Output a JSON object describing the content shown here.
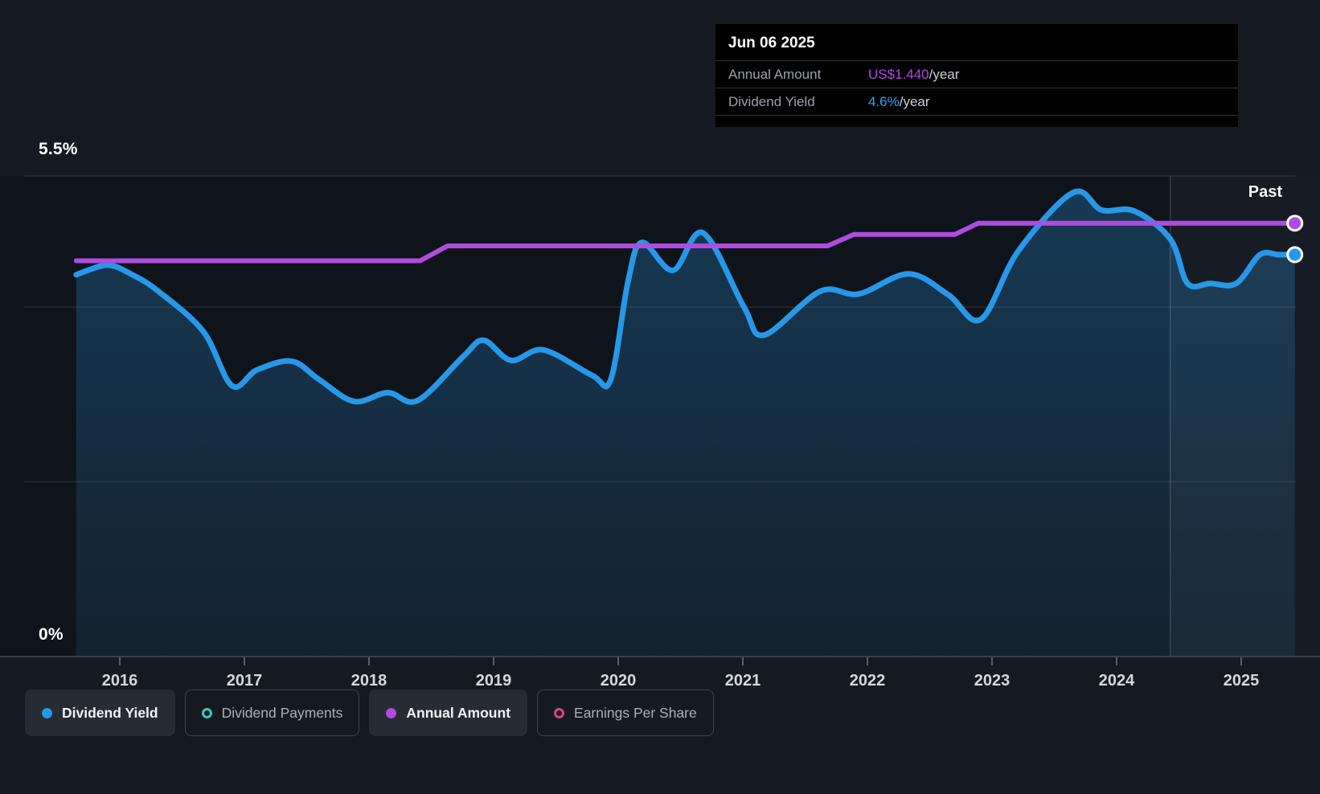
{
  "tooltip": {
    "date": "Jun 06 2025",
    "rows": [
      {
        "label": "Annual Amount",
        "value": "US$1.440",
        "suffix": "/year",
        "value_color": "#ae4ce0"
      },
      {
        "label": "Dividend Yield",
        "value": "4.6%",
        "suffix": "/year",
        "value_color": "#2ea4f2"
      }
    ]
  },
  "axis": {
    "y_top_label": "5.5%",
    "y_bottom_label": "0%",
    "past_label": "Past"
  },
  "legend": [
    {
      "label": "Dividend Yield",
      "color": "#2798e8",
      "marker": "dot",
      "active": true
    },
    {
      "label": "Dividend Payments",
      "color": "#3ec6c0",
      "marker": "ring",
      "active": false
    },
    {
      "label": "Annual Amount",
      "color": "#ae4ce0",
      "marker": "dot",
      "active": true
    },
    {
      "label": "Earnings Per Share",
      "color": "#d84a82",
      "marker": "ring",
      "active": false
    }
  ],
  "chart_data": {
    "type": "area",
    "x_axis": {
      "min": 2015.65,
      "max": 2025.43,
      "ticks": [
        2016,
        2017,
        2018,
        2019,
        2020,
        2021,
        2022,
        2023,
        2024,
        2025
      ]
    },
    "y_axis": {
      "min": 0,
      "max": 5.5,
      "unit": "%",
      "gridline_pcts": [
        5.5,
        4,
        2
      ],
      "top_label": "5.5%",
      "bottom_label": "0%"
    },
    "past_region_start": 2024.43,
    "current": {
      "date": "Jun 06 2025",
      "dividend_yield_pct": 4.6,
      "annual_amount": "US$1.440/year"
    },
    "series": [
      {
        "name": "Dividend Yield",
        "unit": "%",
        "color": "#2798e8",
        "style": "smooth-area",
        "points": [
          [
            2015.65,
            4.37
          ],
          [
            2015.9,
            4.48
          ],
          [
            2016.1,
            4.37
          ],
          [
            2016.31,
            4.18
          ],
          [
            2016.67,
            3.72
          ],
          [
            2016.9,
            3.1
          ],
          [
            2017.1,
            3.28
          ],
          [
            2017.38,
            3.38
          ],
          [
            2017.6,
            3.17
          ],
          [
            2017.88,
            2.92
          ],
          [
            2018.15,
            3.02
          ],
          [
            2018.39,
            2.93
          ],
          [
            2018.76,
            3.44
          ],
          [
            2018.92,
            3.62
          ],
          [
            2019.14,
            3.39
          ],
          [
            2019.4,
            3.51
          ],
          [
            2019.79,
            3.22
          ],
          [
            2019.94,
            3.17
          ],
          [
            2020.08,
            4.3
          ],
          [
            2020.19,
            4.74
          ],
          [
            2020.44,
            4.42
          ],
          [
            2020.68,
            4.85
          ],
          [
            2021.01,
            4.0
          ],
          [
            2021.17,
            3.68
          ],
          [
            2021.62,
            4.18
          ],
          [
            2021.93,
            4.15
          ],
          [
            2022.33,
            4.38
          ],
          [
            2022.65,
            4.14
          ],
          [
            2022.91,
            3.86
          ],
          [
            2023.21,
            4.64
          ],
          [
            2023.65,
            5.31
          ],
          [
            2023.88,
            5.11
          ],
          [
            2024.14,
            5.1
          ],
          [
            2024.43,
            4.78
          ],
          [
            2024.57,
            4.27
          ],
          [
            2024.75,
            4.27
          ],
          [
            2024.96,
            4.27
          ],
          [
            2025.15,
            4.6
          ],
          [
            2025.3,
            4.6
          ],
          [
            2025.43,
            4.6
          ]
        ]
      },
      {
        "name": "Annual Amount",
        "unit": "US$/year",
        "color": "#ae4ce0",
        "style": "line",
        "overlay_pct_points": [
          [
            2015.65,
            4.53
          ],
          [
            2018.41,
            4.53
          ],
          [
            2018.63,
            4.7
          ],
          [
            2021.68,
            4.7
          ],
          [
            2021.89,
            4.83
          ],
          [
            2022.7,
            4.83
          ],
          [
            2022.89,
            4.96
          ],
          [
            2025.43,
            4.96
          ]
        ],
        "amount_steps_usd": [
          {
            "from": 2015.65,
            "amount": 1.32
          },
          {
            "from": 2018.63,
            "amount": 1.36
          },
          {
            "from": 2021.89,
            "amount": 1.4
          },
          {
            "from": 2022.89,
            "amount": 1.44
          }
        ],
        "current_value": "US$1.440/year"
      }
    ]
  }
}
